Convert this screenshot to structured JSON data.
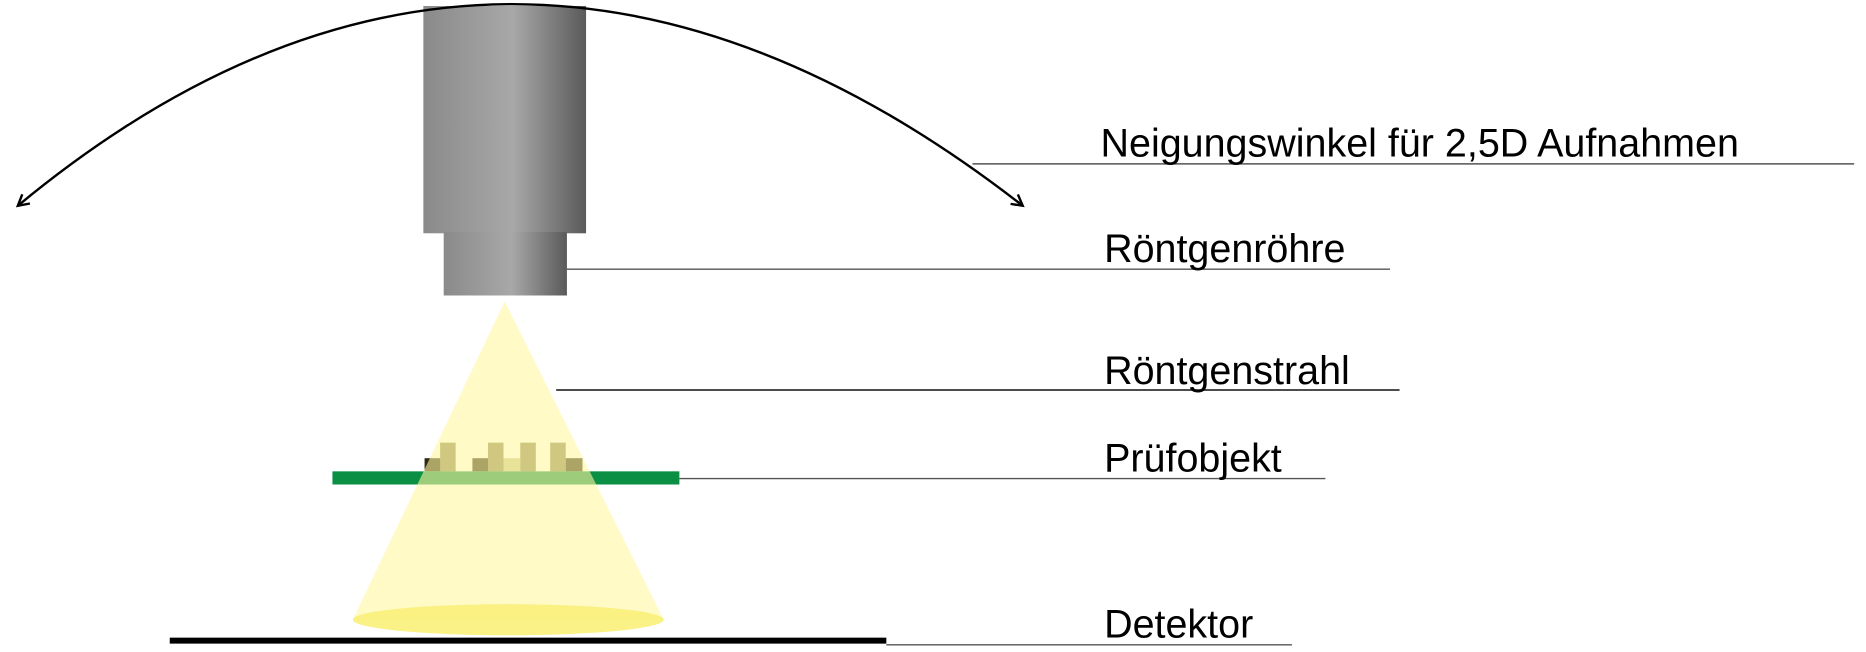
{
  "labels": {
    "tilt_angle": "Neigungswinkel für 2,5D Aufnahmen",
    "xray_tube": "Röntgenröhre",
    "xray_beam": "Röntgenstrahl",
    "test_object": "Prüfobjekt",
    "detector": "Detektor"
  },
  "colors": {
    "tube_gray": "#8c8c8c",
    "beam_yellow": "#fff8b0",
    "spot_yellow": "#faf07a",
    "board_green": "#0a8f45",
    "detector_black": "#000000"
  }
}
